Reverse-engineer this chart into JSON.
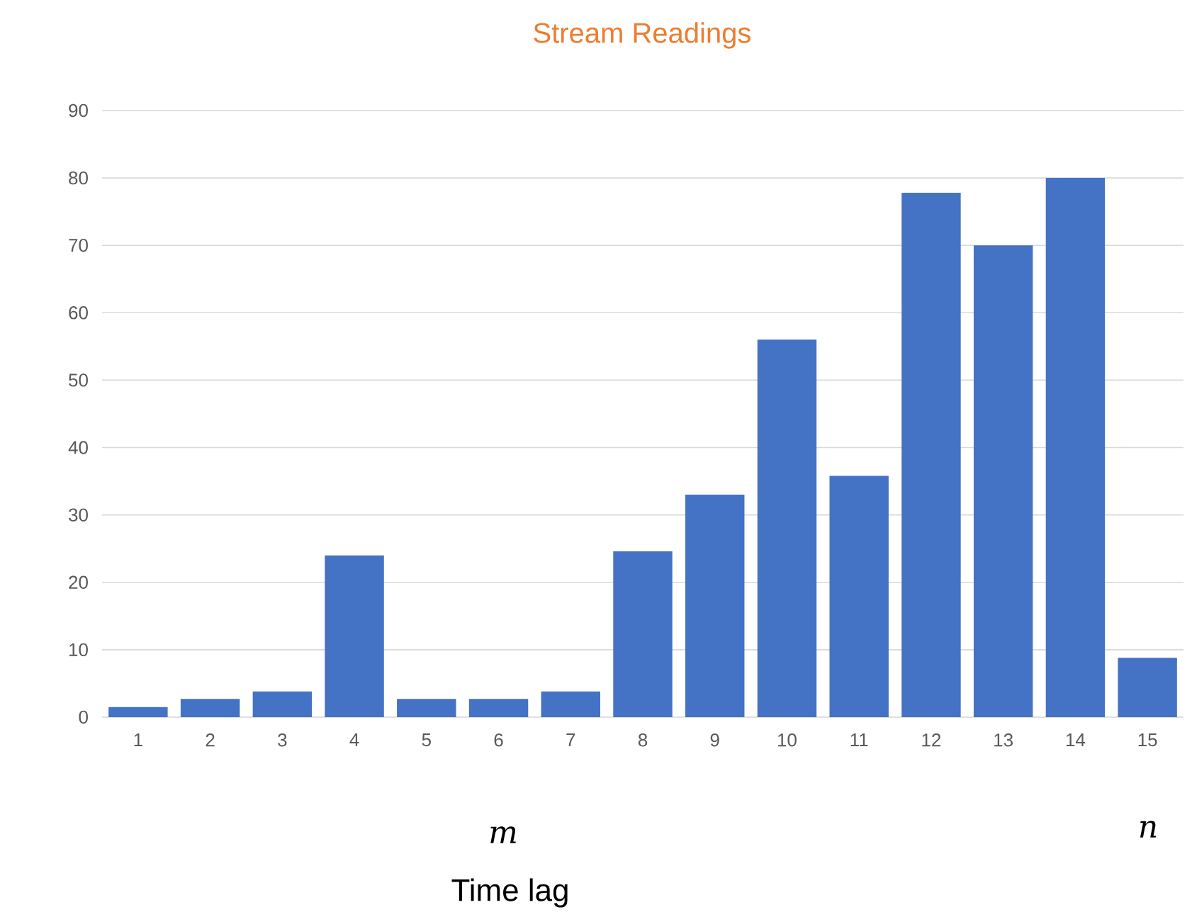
{
  "chart_data": {
    "type": "bar",
    "title": "Stream Readings",
    "xlabel": "Time lag",
    "categories": [
      "1",
      "2",
      "3",
      "4",
      "5",
      "6",
      "7",
      "8",
      "9",
      "10",
      "11",
      "12",
      "13",
      "14",
      "15"
    ],
    "values": [
      1.5,
      2.7,
      3.8,
      24,
      2.7,
      2.7,
      3.8,
      24.6,
      33,
      56,
      35.8,
      77.8,
      70,
      80,
      8.8
    ],
    "color": "#4472c4",
    "ylim": [
      0,
      90
    ],
    "yticks": [
      0,
      10,
      20,
      30,
      40,
      50,
      60,
      70,
      80,
      90
    ],
    "grid": "y",
    "annotations": [
      "m",
      "n"
    ]
  }
}
